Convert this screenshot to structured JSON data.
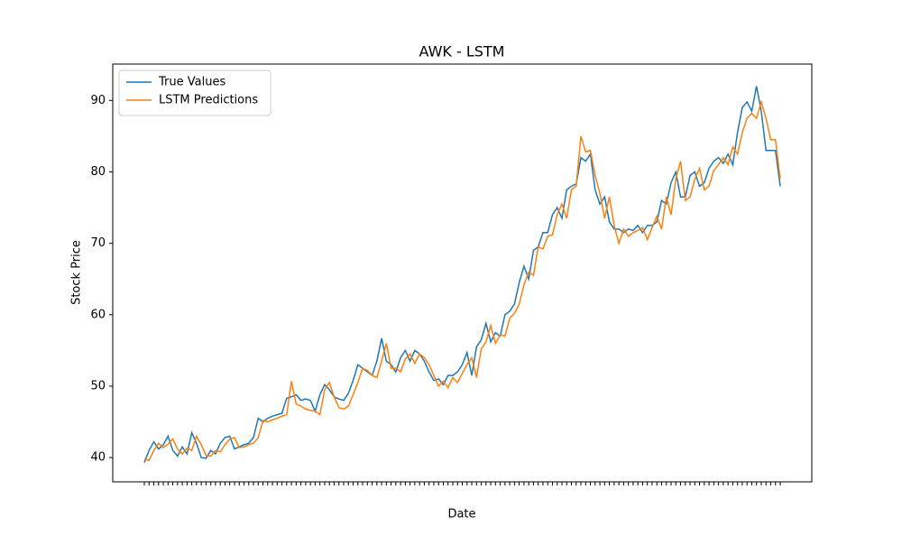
{
  "chart_data": {
    "type": "line",
    "title": "AWK - LSTM",
    "xlabel": "Date",
    "ylabel": "Stock Price",
    "categories": [
      null,
      null,
      null,
      null,
      null,
      null,
      null,
      null,
      null,
      null,
      null,
      null,
      null,
      null,
      null,
      null,
      null,
      null,
      null,
      null,
      null,
      null,
      null,
      null,
      null,
      null,
      null,
      null,
      null,
      null,
      null,
      null,
      null,
      null,
      null,
      null,
      null,
      null,
      null,
      null,
      null,
      null,
      null,
      null,
      null,
      null,
      null,
      null,
      null,
      null,
      null,
      null,
      null,
      null,
      null,
      null,
      null,
      null,
      null,
      null,
      null,
      null,
      null,
      null,
      null,
      null,
      null,
      null,
      null,
      null,
      null,
      null,
      null,
      null,
      null,
      null,
      null,
      null,
      null,
      null,
      null,
      null,
      null,
      null,
      null,
      null,
      null,
      null,
      null,
      null,
      null,
      null,
      null,
      null,
      null,
      null,
      null,
      null,
      null,
      null,
      null,
      null,
      null,
      null,
      null,
      null,
      null,
      null,
      null,
      null,
      null,
      null,
      null,
      null,
      null,
      null,
      null,
      null,
      null,
      null,
      null,
      null,
      null,
      null,
      null,
      null,
      null,
      null,
      null,
      null,
      null,
      null,
      null,
      null,
      null
    ],
    "series": [
      {
        "name": "True Values",
        "color": "#1f77b4",
        "values": [
          39.3,
          41,
          42.2,
          41.2,
          41.8,
          43,
          41,
          40.2,
          41.5,
          40.5,
          43.5,
          42,
          40,
          39.9,
          41,
          40.5,
          42,
          42.8,
          43,
          41.2,
          41.5,
          41.8,
          42,
          42.8,
          45.5,
          45,
          45.5,
          45.8,
          46,
          46.2,
          48.3,
          48.5,
          48.8,
          48,
          48.2,
          48,
          46.5,
          48.8,
          50.2,
          49.5,
          48.5,
          48.2,
          48,
          49,
          50.8,
          53,
          52.5,
          52,
          51.5,
          53.5,
          56.7,
          53.5,
          53,
          52,
          54,
          55,
          53.5,
          55,
          54.5,
          53.5,
          52,
          50.8,
          51,
          50.2,
          51.5,
          51.5,
          52,
          53,
          54.7,
          51.5,
          55.5,
          56.5,
          58.8,
          56.2,
          57.5,
          57,
          60,
          60.5,
          61.5,
          64.5,
          66.8,
          65,
          69,
          69.5,
          71.5,
          71.5,
          74,
          75,
          73.5,
          77.5,
          78,
          78.3,
          82,
          81.5,
          82.5,
          77.5,
          75.5,
          76.5,
          73,
          72,
          72,
          71.5,
          72,
          71.8,
          72.5,
          71.5,
          72.5,
          72.5,
          73,
          76,
          75.5,
          78.5,
          80,
          76.5,
          76.5,
          79.5,
          80,
          78,
          78.5,
          80.5,
          81.5,
          82,
          81.2,
          82.5,
          81,
          85.5,
          89,
          89.8,
          88.5,
          92,
          88.5,
          83,
          83,
          83,
          78
        ]
      },
      {
        "name": "LSTM Predictions",
        "color": "#ff7f0e",
        "values": [
          39.8,
          39.6,
          41,
          42,
          41.4,
          41.9,
          42.6,
          41.2,
          40.5,
          41.3,
          41,
          43,
          41.8,
          40.3,
          40.2,
          41,
          40.8,
          41.8,
          42.6,
          42.8,
          41.4,
          41.5,
          41.8,
          42,
          42.8,
          45.2,
          45,
          45.3,
          45.5,
          45.8,
          46,
          50.7,
          47.5,
          47.2,
          46.8,
          46.6,
          46.5,
          46,
          49.5,
          50.5,
          48.5,
          47,
          46.8,
          47.2,
          48.8,
          50.5,
          52.5,
          52.2,
          51.5,
          51.2,
          53.5,
          56,
          52.5,
          52.5,
          52,
          53.8,
          54.5,
          53.2,
          54.5,
          54,
          53,
          51.5,
          50,
          50.7,
          49.8,
          51.2,
          50.5,
          51.8,
          53,
          54,
          51.2,
          55.2,
          56.2,
          58.5,
          56,
          57.2,
          57,
          59.5,
          60.2,
          61.5,
          64.2,
          66,
          65.5,
          69.5,
          69.2,
          71,
          71.2,
          74,
          75.5,
          73.5,
          77.5,
          78,
          85,
          82.8,
          83,
          79.5,
          77,
          73.5,
          76.5,
          72.5,
          70,
          72,
          71,
          71.5,
          71.8,
          72.2,
          70.5,
          72.2,
          73.8,
          72,
          76.5,
          74,
          79,
          81.5,
          76,
          76.5,
          79,
          80.5,
          77.5,
          78,
          80.2,
          81,
          82,
          81,
          83.5,
          82.5,
          85.5,
          87.5,
          88.2,
          87.5,
          89.8,
          87.5,
          84.5,
          84.5,
          79
        ]
      }
    ],
    "ylim": [
      36.6,
      95.1
    ],
    "yticks": [
      40,
      50,
      60,
      70,
      80,
      90
    ],
    "grid": false,
    "legend": "upper left"
  }
}
